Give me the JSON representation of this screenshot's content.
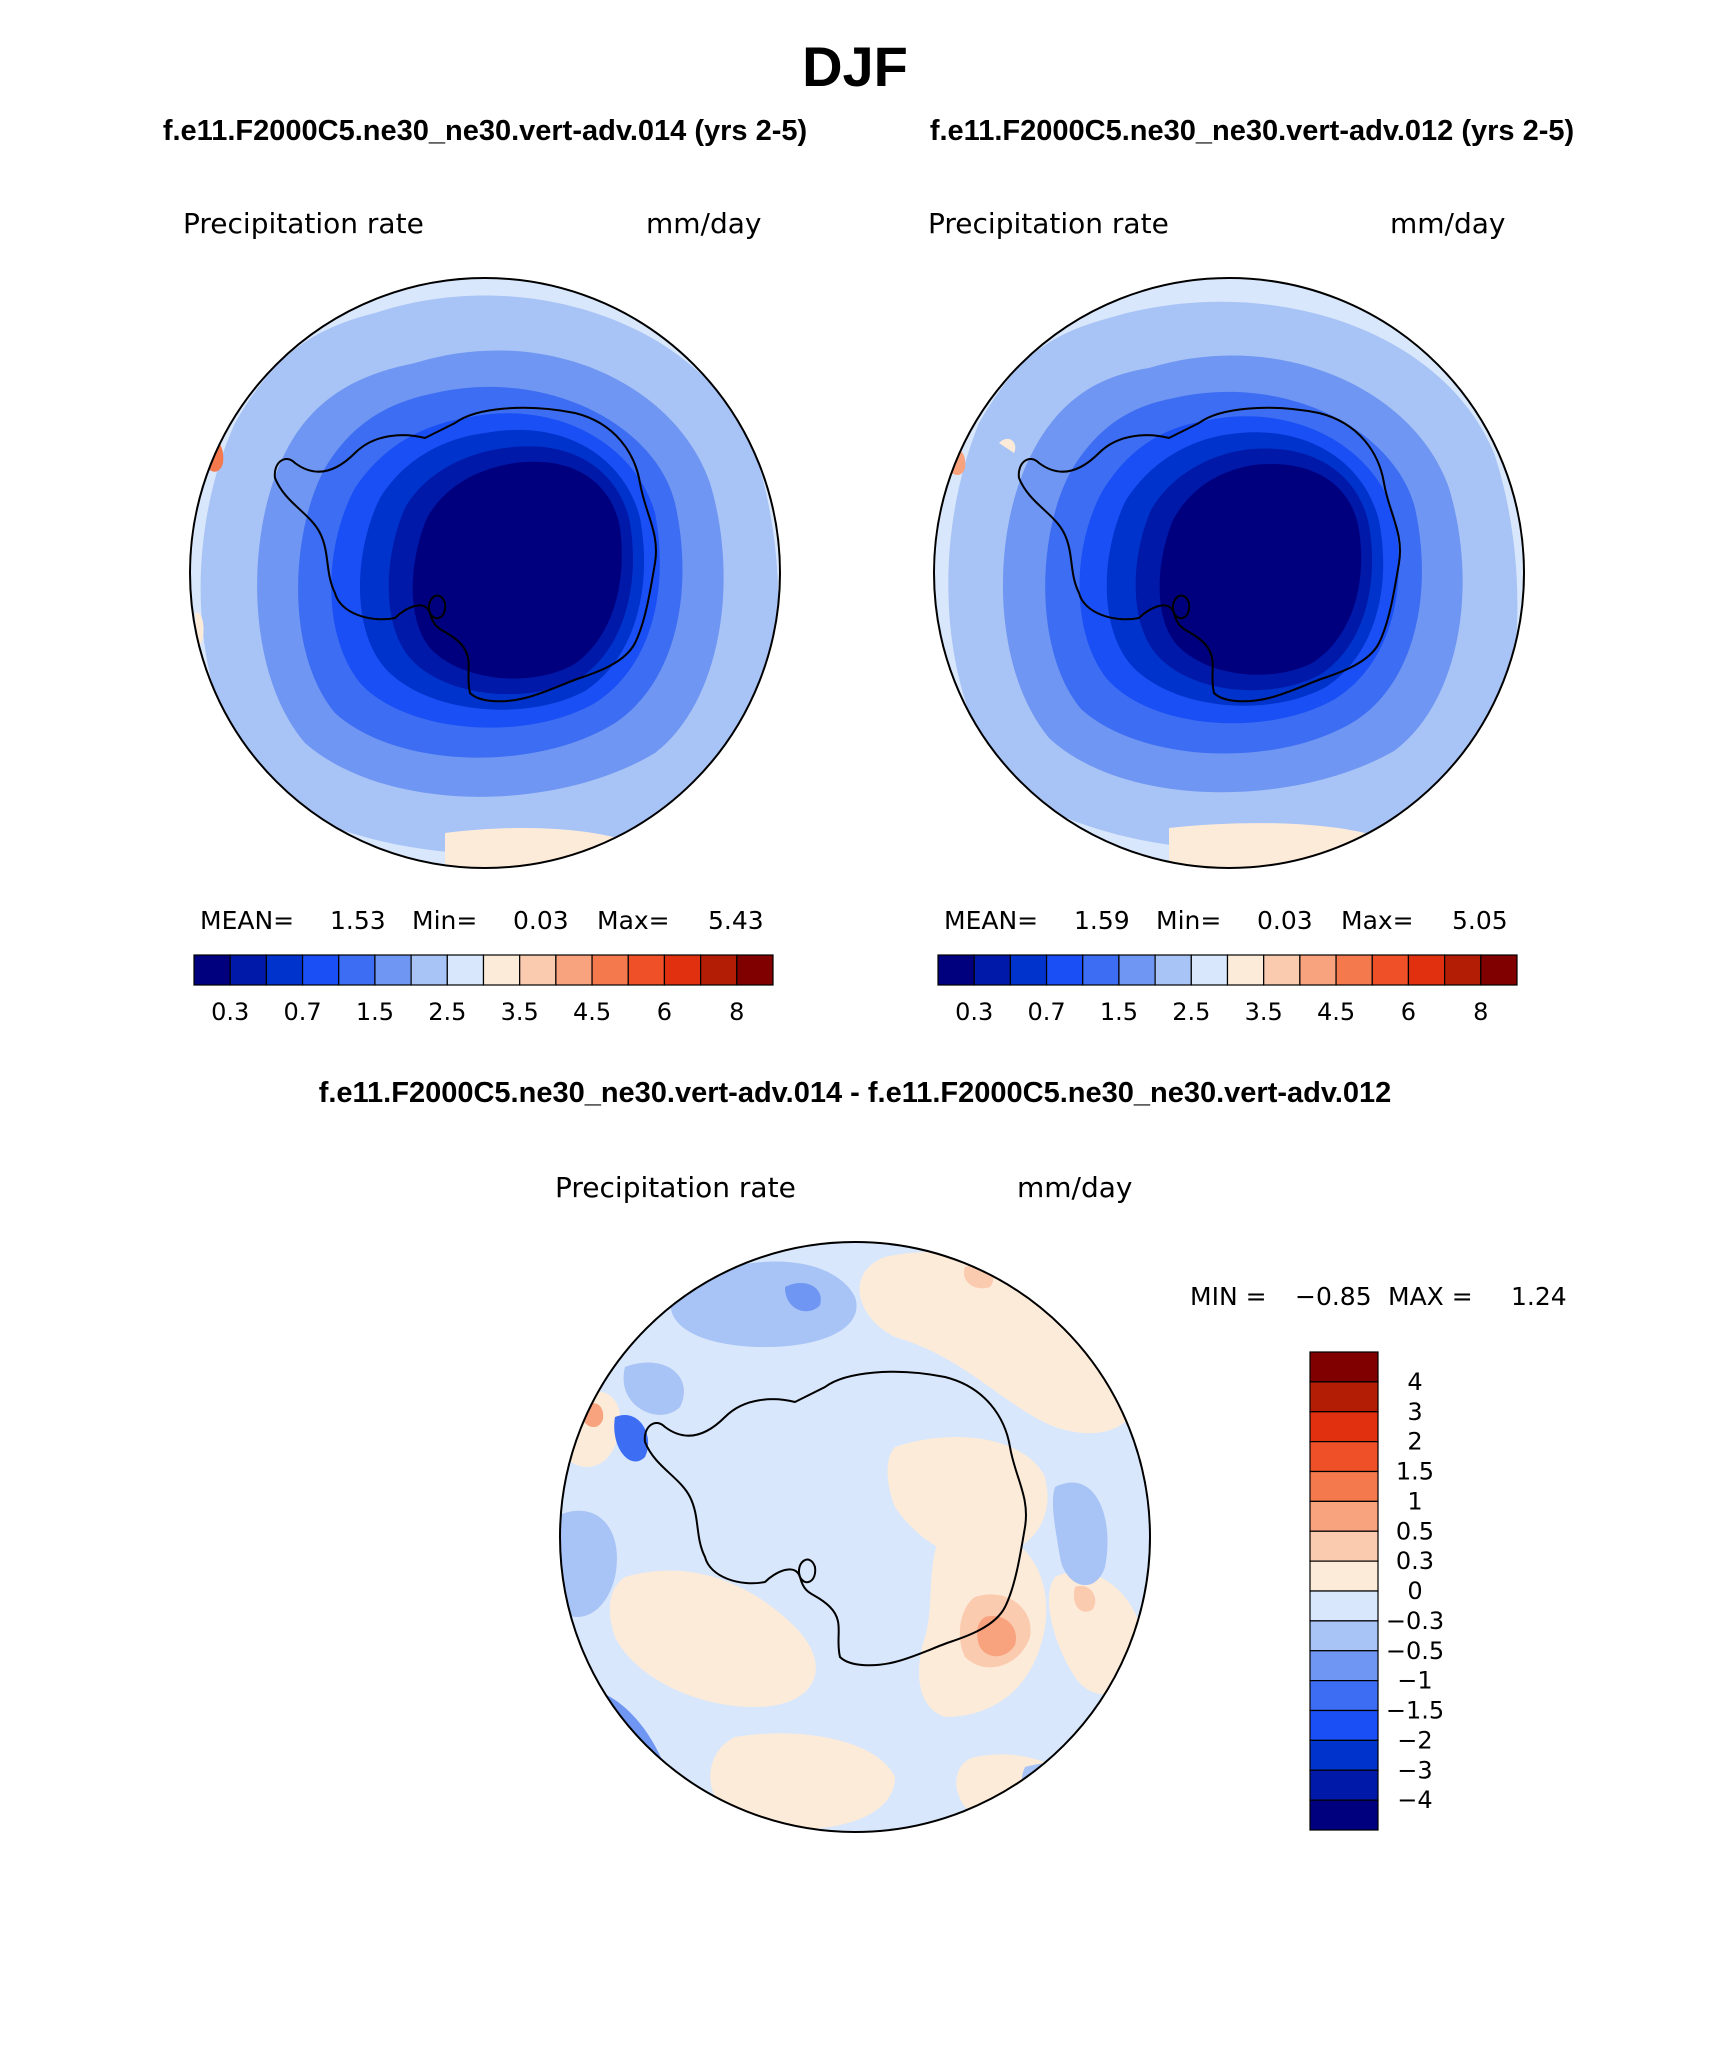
{
  "figure": {
    "title": "DJF"
  },
  "panels": [
    {
      "case": "f.e11.F2000C5.ne30_ne30.vert-adv.014 (yrs 2-5)",
      "variable": "Precipitation rate",
      "units": "mm/day",
      "stats": {
        "mean_label": "MEAN=",
        "mean": "1.53",
        "min_label": "Min=",
        "min": "0.03",
        "max_label": "Max=",
        "max": "5.43"
      }
    },
    {
      "case": "f.e11.F2000C5.ne30_ne30.vert-adv.012 (yrs 2-5)",
      "variable": "Precipitation rate",
      "units": "mm/day",
      "stats": {
        "mean_label": "MEAN=",
        "mean": "1.59",
        "min_label": "Min=",
        "min": "0.03",
        "max_label": "Max=",
        "max": "5.05"
      }
    },
    {
      "case": "f.e11.F2000C5.ne30_ne30.vert-adv.014 - f.e11.F2000C5.ne30_ne30.vert-adv.012",
      "variable": "Precipitation rate",
      "units": "mm/day",
      "stats": {
        "min_label": "MIN =",
        "min": "−0.85",
        "max_label": "MAX =",
        "max": "1.24"
      }
    }
  ],
  "chart_data": [
    {
      "type": "heatmap",
      "projection": "south-polar stereographic",
      "title": "f.e11.F2000C5.ne30_ne30.vert-adv.014 (yrs 2-5)",
      "variable": "Precipitation rate",
      "units": "mm/day",
      "mean": 1.53,
      "min": 0.03,
      "max": 5.43,
      "colorbar": {
        "orientation": "horizontal",
        "levels": [
          0.2,
          0.3,
          0.5,
          0.7,
          1,
          1.5,
          2,
          2.5,
          3,
          3.5,
          4,
          4.5,
          5,
          6,
          7,
          8
        ],
        "tick_labels": [
          "0.3",
          "0.7",
          "1.5",
          "2.5",
          "3.5",
          "4.5",
          "6",
          "8"
        ],
        "colors": [
          "#00007f",
          "#0019a8",
          "#0033cc",
          "#1a4ff5",
          "#3d6df2",
          "#6f96f2",
          "#a8c3f5",
          "#d8e7fb",
          "#fdebd9",
          "#fbcbb0",
          "#f8a27e",
          "#f47a4e",
          "#f05028",
          "#e0300f",
          "#b31d06",
          "#800000"
        ]
      }
    },
    {
      "type": "heatmap",
      "projection": "south-polar stereographic",
      "title": "f.e11.F2000C5.ne30_ne30.vert-adv.012 (yrs 2-5)",
      "variable": "Precipitation rate",
      "units": "mm/day",
      "mean": 1.59,
      "min": 0.03,
      "max": 5.05,
      "colorbar": {
        "orientation": "horizontal",
        "levels": [
          0.2,
          0.3,
          0.5,
          0.7,
          1,
          1.5,
          2,
          2.5,
          3,
          3.5,
          4,
          4.5,
          5,
          6,
          7,
          8
        ],
        "tick_labels": [
          "0.3",
          "0.7",
          "1.5",
          "2.5",
          "3.5",
          "4.5",
          "6",
          "8"
        ],
        "colors": [
          "#00007f",
          "#0019a8",
          "#0033cc",
          "#1a4ff5",
          "#3d6df2",
          "#6f96f2",
          "#a8c3f5",
          "#d8e7fb",
          "#fdebd9",
          "#fbcbb0",
          "#f8a27e",
          "#f47a4e",
          "#f05028",
          "#e0300f",
          "#b31d06",
          "#800000"
        ]
      }
    },
    {
      "type": "heatmap",
      "projection": "south-polar stereographic",
      "title": "f.e11.F2000C5.ne30_ne30.vert-adv.014 - f.e11.F2000C5.ne30_ne30.vert-adv.012",
      "variable": "Precipitation rate",
      "units": "mm/day",
      "min": -0.85,
      "max": 1.24,
      "colorbar": {
        "orientation": "vertical",
        "levels": [
          4,
          3,
          2,
          1.5,
          1,
          0.5,
          0.3,
          0,
          -0.3,
          -0.5,
          -1,
          -1.5,
          -2,
          -3,
          -4
        ],
        "tick_labels": [
          "4",
          "3",
          "2",
          "1.5",
          "1",
          "0.5",
          "0.3",
          "0",
          "−0.3",
          "−0.5",
          "−1",
          "−1.5",
          "−2",
          "−3",
          "−4"
        ],
        "colors": [
          "#800000",
          "#b31d06",
          "#e0300f",
          "#f05028",
          "#f47a4e",
          "#f8a27e",
          "#fbcbb0",
          "#fdebd9",
          "#d8e7fb",
          "#a8c3f5",
          "#6f96f2",
          "#3d6df2",
          "#1a4ff5",
          "#0033cc",
          "#0019a8",
          "#00007f"
        ]
      }
    }
  ]
}
